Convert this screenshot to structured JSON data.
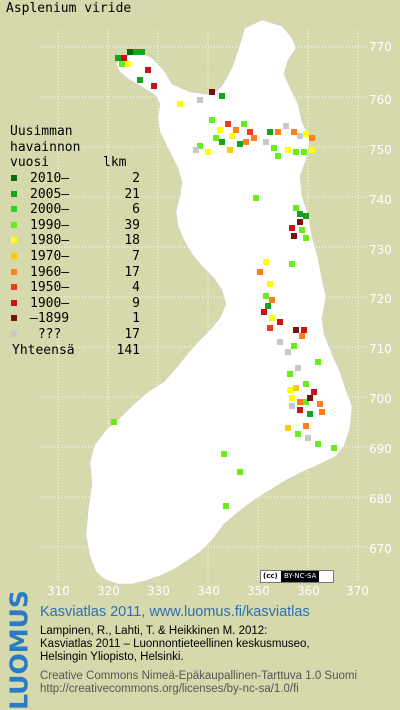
{
  "species": "Asplenium viride",
  "legend": {
    "heading": [
      "Uusimman",
      "havainnon",
      "vuosi"
    ],
    "count_heading": "lkm",
    "items": [
      {
        "label": "2010–",
        "count": "2",
        "color": "#0a6a12"
      },
      {
        "label": "2005–",
        "count": "21",
        "color": "#16a31e"
      },
      {
        "label": "2000–",
        "count": "6",
        "color": "#2fd12e"
      },
      {
        "label": "1990–",
        "count": "39",
        "color": "#66ee1a"
      },
      {
        "label": "1980–",
        "count": "18",
        "color": "#ffff00"
      },
      {
        "label": "1970–",
        "count": "7",
        "color": "#ffcc00"
      },
      {
        "label": "1960–",
        "count": "17",
        "color": "#ff7f1a"
      },
      {
        "label": "1950–",
        "count": "4",
        "color": "#ee3b1a"
      },
      {
        "label": "1900–",
        "count": "9",
        "color": "#c81414"
      },
      {
        "label": "–1899",
        "count": "1",
        "color": "#7a0f0f"
      },
      {
        "label": " ???",
        "count": "17",
        "color": "#c8c8c8"
      }
    ],
    "total_label": "Yhteensä",
    "total_count": "141"
  },
  "map_grid": {
    "northing_labels": [
      "770",
      "760",
      "750",
      "740",
      "730",
      "720",
      "710",
      "700",
      "690",
      "680",
      "670"
    ],
    "easting_labels": [
      "310",
      "320",
      "330",
      "340",
      "350",
      "360",
      "370"
    ]
  },
  "license_badge": {
    "cc": "(cc)",
    "terms": "BY-NC-SA"
  },
  "credits": {
    "logo": "LUOMUS",
    "title": "Kasviatlas 2011, www.luomus.fi/kasviatlas",
    "citation": [
      "Lampinen, R., Lahti, T. & Heikkinen M. 2012:",
      "Kasviatlas 2011 – Luonnontieteellinen keskusmuseo,",
      "Helsingin Yliopisto, Helsinki."
    ],
    "license": [
      "Creative Commons Nimeä-Epäkaupallinen-Tarttuva 1.0 Suomi",
      "http://creativecommons.org/licenses/by-nc-sa/1.0/fi"
    ]
  }
}
